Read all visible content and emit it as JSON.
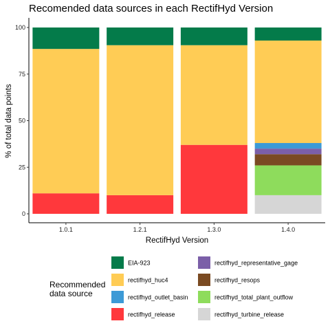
{
  "chart_data": {
    "type": "bar",
    "stacked": true,
    "title": "Recomended data sources in each RectifHyd Version",
    "xlabel": "RectifHyd Version",
    "ylabel": "% of total data points",
    "ylim": [
      0,
      100
    ],
    "yticks": [
      0,
      25,
      50,
      75,
      100
    ],
    "categories": [
      "1.0.1",
      "1.2.1",
      "1.3.0",
      "1.4.0"
    ],
    "legend_title": "Recommended data source",
    "legend_title_lines": [
      "Recommended",
      "data source"
    ],
    "legend_position": "bottom",
    "grid": false,
    "series": [
      {
        "name": "rectifhyd_turbine_release",
        "color": "#D6D6D6",
        "values": [
          0,
          0,
          0,
          10
        ]
      },
      {
        "name": "rectifhyd_total_plant_outflow",
        "color": "#8EDC5C",
        "values": [
          0,
          0,
          0,
          16
        ]
      },
      {
        "name": "rectifhyd_resops",
        "color": "#7A4A22",
        "values": [
          0,
          0,
          0,
          6
        ]
      },
      {
        "name": "rectifhyd_representative_gage",
        "color": "#7B5FA8",
        "values": [
          0,
          0,
          0,
          3
        ]
      },
      {
        "name": "rectifhyd_release",
        "color": "#FF383C",
        "values": [
          11,
          10,
          37,
          0
        ]
      },
      {
        "name": "rectifhyd_outlet_basin",
        "color": "#3D9AD6",
        "values": [
          0,
          0,
          0,
          3
        ]
      },
      {
        "name": "rectifhyd_huc4",
        "color": "#FFCC55",
        "values": [
          77.5,
          80.5,
          53.5,
          55
        ]
      },
      {
        "name": "EIA-923",
        "color": "#047B4A",
        "values": [
          11.5,
          9.5,
          9.5,
          7
        ]
      }
    ],
    "legend_order": [
      "EIA-923",
      "rectifhyd_huc4",
      "rectifhyd_outlet_basin",
      "rectifhyd_release",
      "rectifhyd_representative_gage",
      "rectifhyd_resops",
      "rectifhyd_total_plant_outflow",
      "rectifhyd_turbine_release"
    ]
  }
}
